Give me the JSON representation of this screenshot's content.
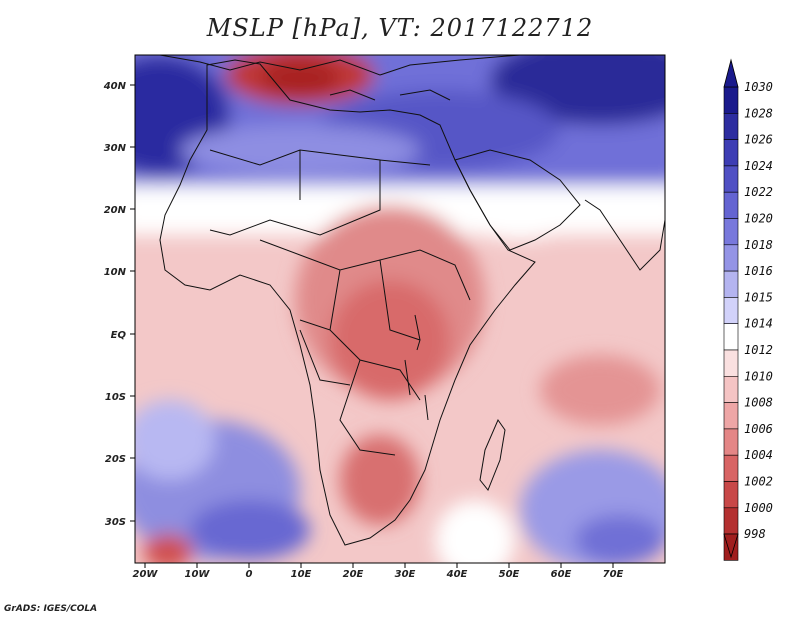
{
  "title": "MSLP [hPa], VT: 2017122712",
  "credit": "GrADS: IGES/COLA",
  "map": {
    "lon_range": [
      -22,
      80
    ],
    "lat_range": [
      -37,
      45
    ],
    "lon_ticks": [
      "20W",
      "10W",
      "0",
      "10E",
      "20E",
      "30E",
      "40E",
      "50E",
      "60E",
      "70E"
    ],
    "lat_ticks": [
      "40N",
      "30N",
      "20N",
      "10N",
      "EQ",
      "10S",
      "20S",
      "30S"
    ]
  },
  "colorbar": {
    "labels": [
      "1030",
      "1028",
      "1026",
      "1024",
      "1022",
      "1020",
      "1018",
      "1016",
      "1015",
      "1014",
      "1012",
      "1010",
      "1008",
      "1006",
      "1004",
      "1002",
      "1000",
      "998"
    ],
    "colors": [
      "#1a1a8c",
      "#2d2da0",
      "#3d3db4",
      "#5050c4",
      "#6464d2",
      "#7878dc",
      "#9494e6",
      "#b4b4f0",
      "#d2d2fa",
      "#ffffff",
      "#fae0e0",
      "#f5c4c4",
      "#eea6a6",
      "#e48686",
      "#d86464",
      "#c84848",
      "#b43030",
      "#a01e1e"
    ]
  }
}
